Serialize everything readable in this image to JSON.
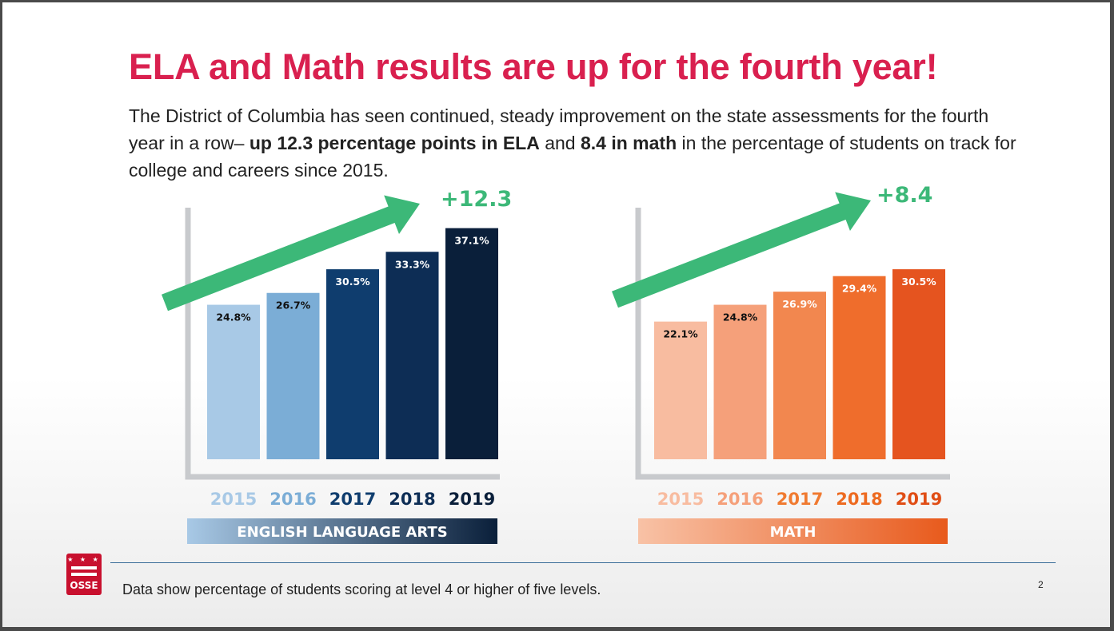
{
  "slide": {
    "title": "ELA and Math results are up for the fourth year!",
    "intro_1": "The District of Columbia has seen continued, steady improvement on the state assessments for the fourth year in a row– ",
    "intro_bold_1": "up 12.3 percentage points in ELA",
    "intro_2": " and ",
    "intro_bold_2": "8.4 in math",
    "intro_3": " in the percentage of students on track for college and careers since 2015.",
    "footnote": "Data show percentage of students scoring at level 4 or higher of five levels.",
    "page_number": "2",
    "logo_text": "OSSE",
    "logo_stars": "★ ★ ★"
  },
  "chart_data": [
    {
      "type": "bar",
      "title": "ENGLISH LANGUAGE ARTS",
      "categories": [
        "2015",
        "2016",
        "2017",
        "2018",
        "2019"
      ],
      "values": [
        24.8,
        26.7,
        30.5,
        33.3,
        37.1
      ],
      "labels": [
        "24.8%",
        "26.7%",
        "30.5%",
        "33.3%",
        "37.1%"
      ],
      "annotation": "+12.3",
      "colors": [
        "#a8c9e6",
        "#7badd6",
        "#0f3d6e",
        "#0d2d55",
        "#0a1f3a"
      ],
      "label_colors": [
        "#111111",
        "#111111",
        "#ffffff",
        "#ffffff",
        "#ffffff"
      ],
      "tick_colors": [
        "#a8c9e6",
        "#7badd6",
        "#0f3d6e",
        "#0d2d55",
        "#0a1f3a"
      ],
      "banner_gradient": [
        "#a8c9e6",
        "#0a1f3a"
      ],
      "arrow_color": "#3cb878"
    },
    {
      "type": "bar",
      "title": "MATH",
      "categories": [
        "2015",
        "2016",
        "2017",
        "2018",
        "2019"
      ],
      "values": [
        22.1,
        24.8,
        26.9,
        29.4,
        30.5
      ],
      "labels": [
        "22.1%",
        "24.8%",
        "26.9%",
        "29.4%",
        "30.5%"
      ],
      "annotation": "+8.4",
      "colors": [
        "#f8bca0",
        "#f5a07a",
        "#f2874f",
        "#ef6d2c",
        "#e5541f"
      ],
      "label_colors": [
        "#111111",
        "#111111",
        "#ffffff",
        "#ffffff",
        "#ffffff"
      ],
      "tick_colors": [
        "#f8bca0",
        "#f5a07a",
        "#f07a30",
        "#ed6a20",
        "#e04d15"
      ],
      "banner_gradient": [
        "#f8c2a6",
        "#e85a1c"
      ],
      "arrow_color": "#3cb878"
    }
  ]
}
